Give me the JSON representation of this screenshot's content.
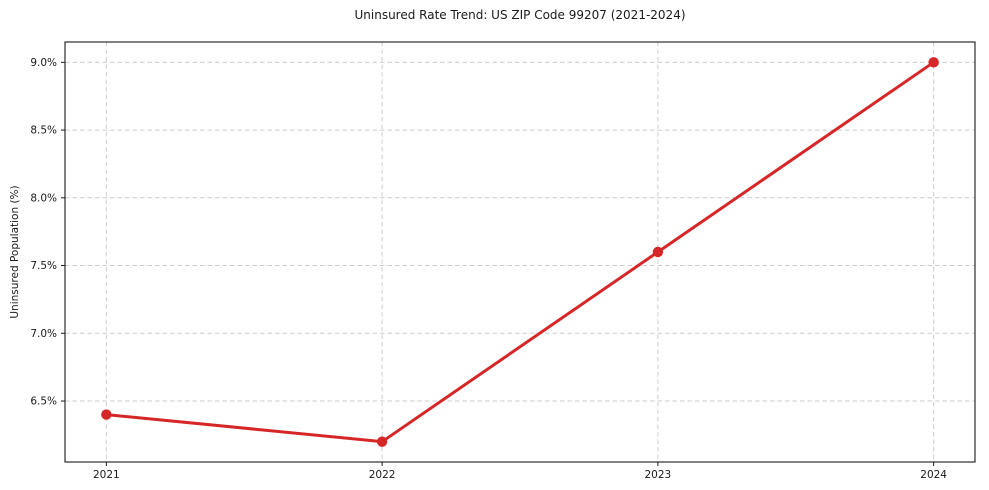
{
  "chart_data": {
    "type": "line",
    "title": "Uninsured Rate Trend: US ZIP Code 99207 (2021-2024)",
    "xlabel": "",
    "ylabel": "Uninsured Population (%)",
    "x": [
      2021,
      2022,
      2023,
      2024
    ],
    "values": [
      6.4,
      6.2,
      7.6,
      9.0
    ],
    "xticks": [
      2021,
      2022,
      2023,
      2024
    ],
    "xtick_labels": [
      "2021",
      "2022",
      "2023",
      "2024"
    ],
    "yticks": [
      6.5,
      7.0,
      7.5,
      8.0,
      8.5,
      9.0
    ],
    "ytick_labels": [
      "6.5%",
      "7.0%",
      "7.5%",
      "8.0%",
      "8.5%",
      "9.0%"
    ],
    "xlim": [
      2020.85,
      2024.15
    ],
    "ylim": [
      6.05,
      9.15
    ],
    "grid": true,
    "grid_style": "dashed",
    "legend": false,
    "colors": {
      "line": "#d62728",
      "marker": "#d62728",
      "grid": "#cccccc",
      "axis": "#1a1a1a",
      "text": "#1a1a1a",
      "background": "#ffffff"
    },
    "marker": "circle"
  }
}
